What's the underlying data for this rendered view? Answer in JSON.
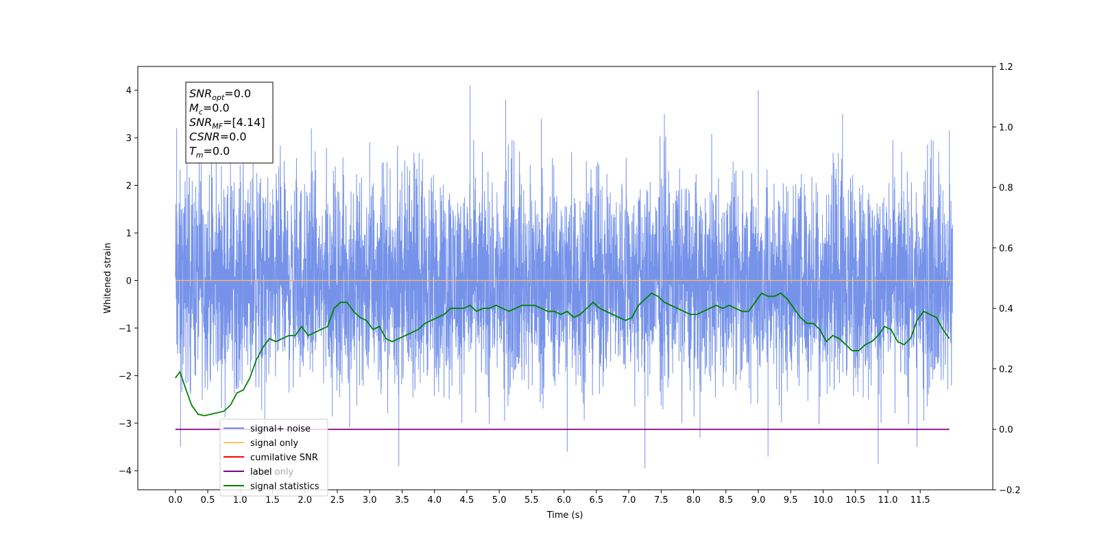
{
  "chart_data": {
    "type": "line",
    "xlabel": "Time (s)",
    "ylabel": "Whitened strain",
    "xlim": [
      -0.58,
      12.62
    ],
    "ylim": [
      -4.4,
      4.5
    ],
    "ylim_right": [
      -0.2,
      1.2
    ],
    "xticks": [
      "0.0",
      "0.5",
      "1.0",
      "1.5",
      "2.0",
      "2.5",
      "3.0",
      "3.5",
      "4.0",
      "4.5",
      "5.0",
      "5.5",
      "6.0",
      "6.5",
      "7.0",
      "7.5",
      "8.0",
      "8.5",
      "9.0",
      "9.5",
      "10.0",
      "10.5",
      "11.0",
      "11.5"
    ],
    "yticks_left": [
      "4",
      "3",
      "2",
      "1",
      "0",
      "−1",
      "−2",
      "−3",
      "−4"
    ],
    "yticks_right": [
      "1.2",
      "1.0",
      "0.8",
      "0.6",
      "0.4",
      "0.2",
      "0.0",
      "−0.2"
    ],
    "grid": false,
    "legend_position": "lower-left",
    "legend": [
      "signal+ noise",
      "signal only",
      "cumilative SNR",
      "label",
      "label only",
      "signal statistics"
    ],
    "colors": {
      "noise": "#6f8de8",
      "signal_only": "#ffbf5e",
      "cumulative_snr": "#ff0000",
      "label": "#800080",
      "signal_statistics": "#008000"
    },
    "info_box": [
      {
        "main": "SNR",
        "sub": "opt",
        "value": "=0.0"
      },
      {
        "main": "M",
        "sub": "c",
        "value": "=0.0"
      },
      {
        "main": "SNR",
        "sub": "MF",
        "value": "=[4.14]"
      },
      {
        "main": "CSNR",
        "sub": "",
        "value": "=0.0"
      },
      {
        "main": "T",
        "sub": "m",
        "value": "=0.0"
      }
    ],
    "series": [
      {
        "name": "signal+ noise",
        "axis": "left",
        "x_range": [
          0.0,
          12.0
        ],
        "typical_range": [
          -2.5,
          2.5
        ],
        "peaks": [
          {
            "x": 0.02,
            "y": 3.2
          },
          {
            "x": 0.08,
            "y": -3.5
          },
          {
            "x": 0.18,
            "y": 2.6
          },
          {
            "x": 0.4,
            "y": 3.1
          },
          {
            "x": 0.85,
            "y": 2.7
          },
          {
            "x": 1.2,
            "y": 3.2
          },
          {
            "x": 1.38,
            "y": -3.6
          },
          {
            "x": 2.1,
            "y": 3.2
          },
          {
            "x": 3.0,
            "y": 2.9
          },
          {
            "x": 3.45,
            "y": -3.9
          },
          {
            "x": 4.55,
            "y": 4.1
          },
          {
            "x": 5.1,
            "y": 3.8
          },
          {
            "x": 5.65,
            "y": 3.4
          },
          {
            "x": 6.05,
            "y": -3.6
          },
          {
            "x": 7.25,
            "y": -3.95
          },
          {
            "x": 7.55,
            "y": 3.5
          },
          {
            "x": 8.1,
            "y": -3.3
          },
          {
            "x": 9.0,
            "y": 4.0
          },
          {
            "x": 9.15,
            "y": -3.7
          },
          {
            "x": 10.3,
            "y": 3.5
          },
          {
            "x": 10.85,
            "y": -3.85
          },
          {
            "x": 11.45,
            "y": -3.5
          },
          {
            "x": 11.95,
            "y": 3.15
          }
        ]
      },
      {
        "name": "signal only",
        "axis": "left",
        "x": [
          0.0,
          12.0
        ],
        "y": [
          0.0,
          0.0
        ]
      },
      {
        "name": "label",
        "axis": "right",
        "x": [
          0.0,
          11.95
        ],
        "y": [
          0.0,
          0.0
        ]
      },
      {
        "name": "signal statistics",
        "axis": "right",
        "x": [
          0.0,
          0.07,
          0.15,
          0.25,
          0.35,
          0.45,
          0.55,
          0.65,
          0.75,
          0.85,
          0.95,
          1.05,
          1.15,
          1.25,
          1.35,
          1.45,
          1.55,
          1.65,
          1.75,
          1.85,
          1.95,
          2.05,
          2.15,
          2.25,
          2.35,
          2.45,
          2.55,
          2.65,
          2.75,
          2.85,
          2.95,
          3.05,
          3.15,
          3.25,
          3.35,
          3.45,
          3.55,
          3.65,
          3.75,
          3.85,
          3.95,
          4.05,
          4.15,
          4.25,
          4.35,
          4.45,
          4.55,
          4.65,
          4.75,
          4.85,
          4.95,
          5.05,
          5.15,
          5.25,
          5.35,
          5.45,
          5.55,
          5.65,
          5.75,
          5.85,
          5.95,
          6.05,
          6.15,
          6.25,
          6.35,
          6.45,
          6.55,
          6.65,
          6.75,
          6.85,
          6.95,
          7.05,
          7.15,
          7.25,
          7.35,
          7.45,
          7.55,
          7.65,
          7.75,
          7.85,
          7.95,
          8.05,
          8.15,
          8.25,
          8.35,
          8.45,
          8.55,
          8.65,
          8.75,
          8.85,
          8.95,
          9.05,
          9.15,
          9.25,
          9.35,
          9.45,
          9.55,
          9.65,
          9.75,
          9.85,
          9.95,
          10.05,
          10.15,
          10.25,
          10.35,
          10.45,
          10.55,
          10.65,
          10.75,
          10.85,
          10.95,
          11.05,
          11.15,
          11.25,
          11.35,
          11.45,
          11.55,
          11.65,
          11.75,
          11.85,
          11.95
        ],
        "y": [
          0.17,
          0.19,
          0.14,
          0.08,
          0.05,
          0.045,
          0.05,
          0.055,
          0.06,
          0.08,
          0.12,
          0.13,
          0.17,
          0.23,
          0.27,
          0.3,
          0.29,
          0.3,
          0.31,
          0.31,
          0.34,
          0.31,
          0.32,
          0.33,
          0.34,
          0.4,
          0.42,
          0.42,
          0.39,
          0.37,
          0.36,
          0.33,
          0.34,
          0.3,
          0.29,
          0.3,
          0.31,
          0.32,
          0.33,
          0.35,
          0.36,
          0.37,
          0.38,
          0.4,
          0.4,
          0.4,
          0.41,
          0.39,
          0.4,
          0.4,
          0.41,
          0.4,
          0.39,
          0.4,
          0.41,
          0.41,
          0.41,
          0.4,
          0.39,
          0.39,
          0.38,
          0.39,
          0.37,
          0.38,
          0.4,
          0.42,
          0.4,
          0.39,
          0.38,
          0.37,
          0.36,
          0.37,
          0.41,
          0.43,
          0.45,
          0.44,
          0.42,
          0.41,
          0.4,
          0.39,
          0.38,
          0.38,
          0.39,
          0.4,
          0.41,
          0.4,
          0.41,
          0.4,
          0.39,
          0.39,
          0.42,
          0.45,
          0.44,
          0.44,
          0.45,
          0.43,
          0.4,
          0.37,
          0.35,
          0.35,
          0.33,
          0.29,
          0.31,
          0.3,
          0.28,
          0.26,
          0.26,
          0.28,
          0.29,
          0.31,
          0.34,
          0.33,
          0.29,
          0.28,
          0.3,
          0.36,
          0.39,
          0.38,
          0.37,
          0.33,
          0.3
        ]
      }
    ]
  }
}
